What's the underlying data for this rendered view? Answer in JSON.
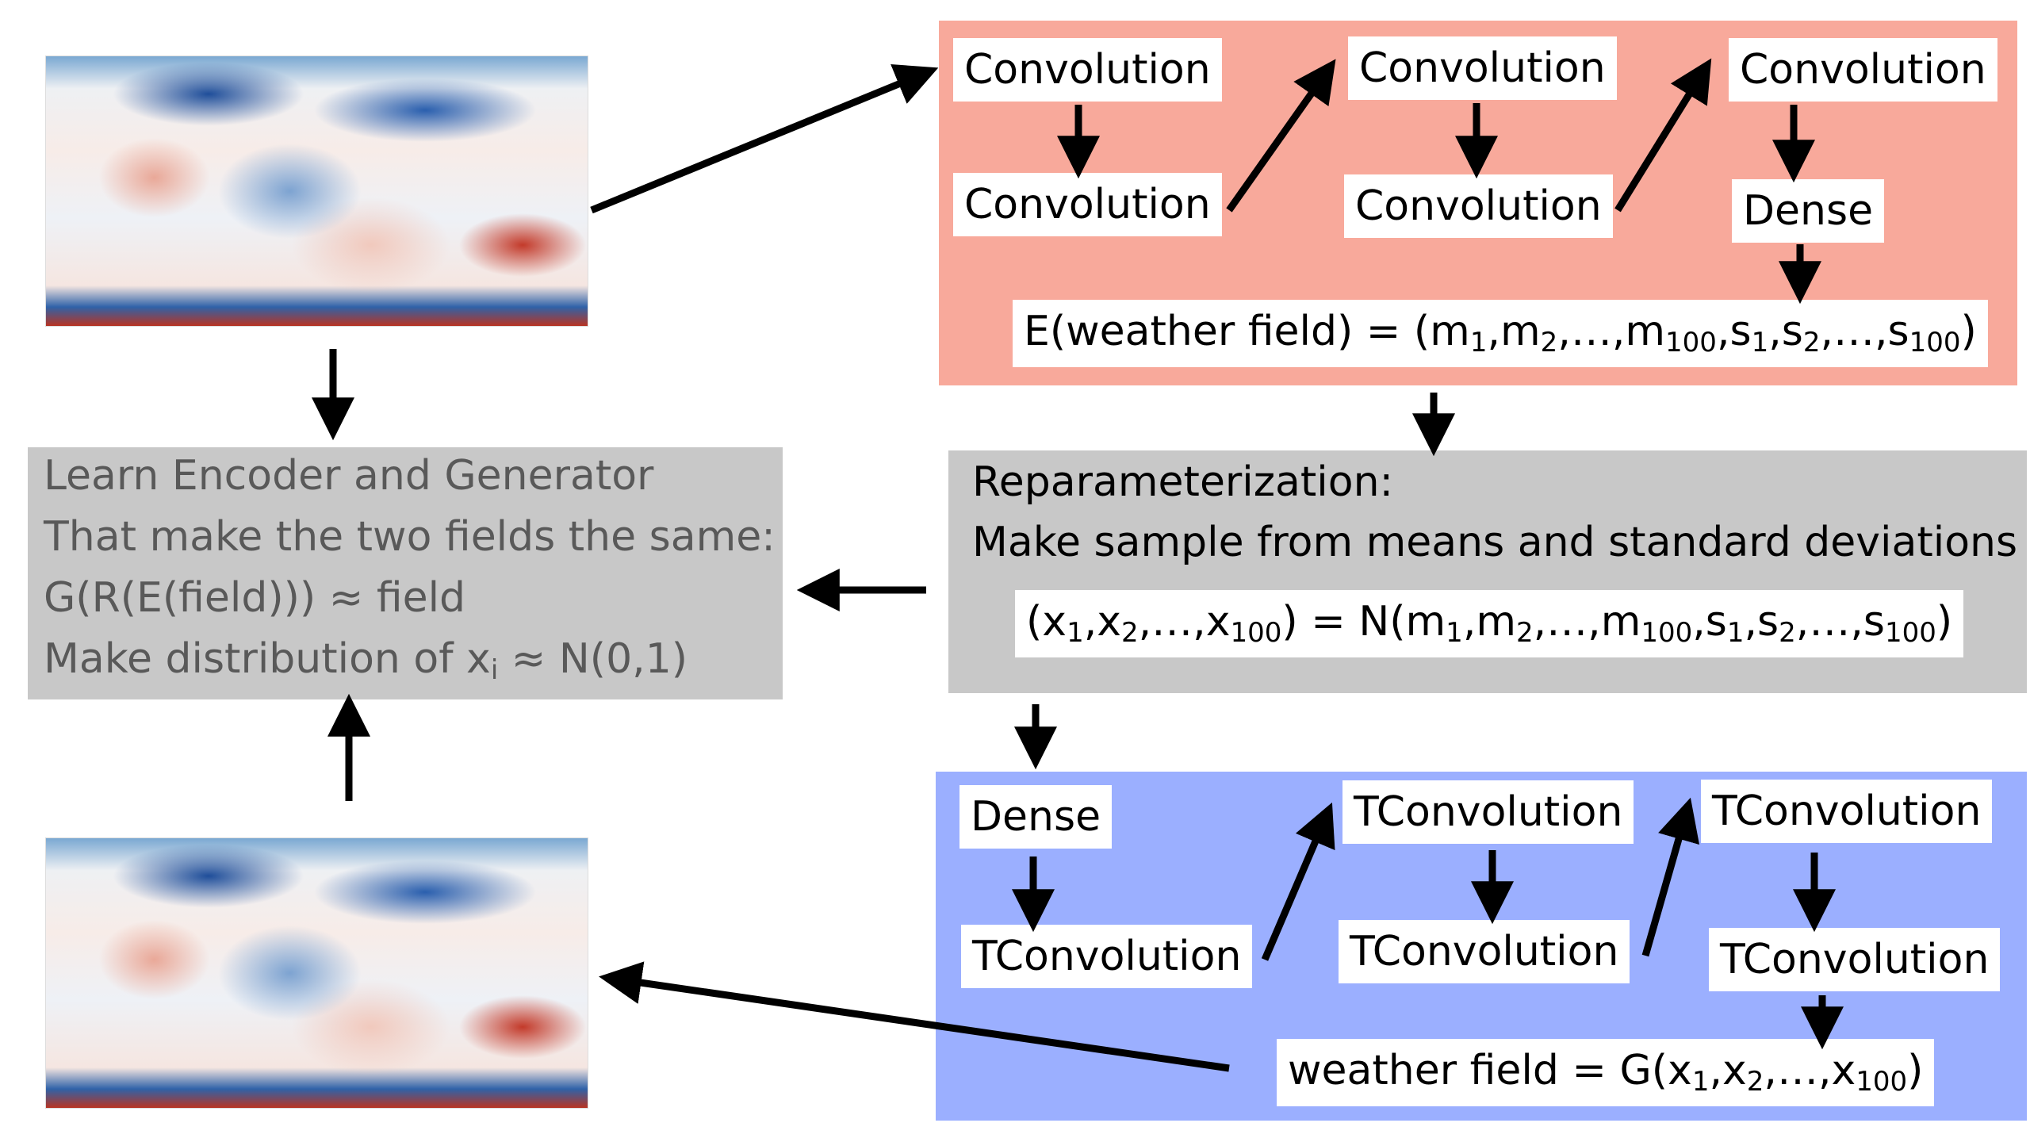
{
  "encoder": {
    "c1": "Convolution",
    "c2": "Convolution",
    "c3": "Convolution",
    "c4": "Convolution",
    "c5": "Convolution",
    "dense": "Dense",
    "formula_pre": "E(weather field) = (m",
    "formula_sub": [
      "1",
      "2",
      "100",
      "1",
      "2",
      "100"
    ],
    "formula_parts": [
      ",m",
      ",…,m",
      ",s",
      ",s",
      ",…,s",
      ")"
    ]
  },
  "reparam": {
    "title": "Reparameterization:",
    "desc": "Make sample from means and standard deviations",
    "formula_pre": "(x",
    "formula_sub": [
      "1",
      "2",
      "100",
      "1",
      "2",
      "100",
      "1",
      "2",
      "100"
    ],
    "formula_parts": [
      ",x",
      ",…,x",
      ") = N(m",
      ",m",
      ",…,m",
      ",s",
      ",s",
      ",…,s",
      ")"
    ]
  },
  "learn": {
    "line1": "Learn Encoder and Generator",
    "line2": "That make the two fields the same:",
    "line3": "G(R(E(field))) ≈ field",
    "line4_pre": "Make distribution of x",
    "line4_sub": "i",
    "line4_post": " ≈ N(0,1)"
  },
  "decoder": {
    "dense": "Dense",
    "t1": "TConvolution",
    "t2": "TConvolution",
    "t3": "TConvolution",
    "t4": "TConvolution",
    "t5": "TConvolution",
    "formula_pre": "weather field = G(x",
    "formula_sub": [
      "1",
      "2",
      "100"
    ],
    "formula_parts": [
      ",x",
      ",…,x",
      ")"
    ]
  }
}
